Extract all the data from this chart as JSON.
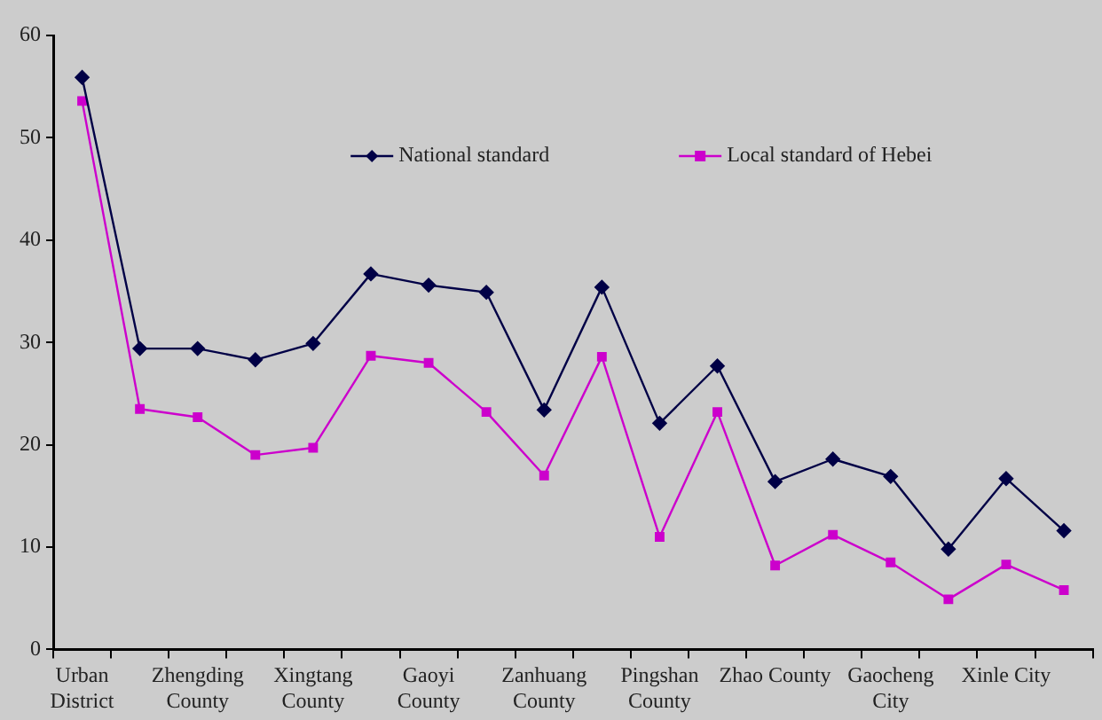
{
  "chart_data": {
    "type": "line",
    "categories": [
      "Urban District",
      null,
      "Zhengding County",
      null,
      "Xingtang County",
      null,
      "Gaoyi County",
      null,
      "Zanhuang County",
      null,
      "Pingshan County",
      null,
      "Zhao County",
      null,
      "Gaocheng City",
      null,
      "Xinle City",
      null
    ],
    "series": [
      {
        "name": "National standard",
        "color": "#000046",
        "marker": "diamond",
        "values": [
          55.9,
          29.4,
          29.4,
          28.3,
          29.9,
          36.7,
          35.6,
          34.9,
          23.4,
          35.4,
          22.1,
          27.7,
          16.4,
          18.6,
          16.9,
          9.8,
          16.7,
          11.6
        ]
      },
      {
        "name": "Local standard of Hebei",
        "color": "#cc00cc",
        "marker": "square",
        "values": [
          53.6,
          23.5,
          22.7,
          19.0,
          19.7,
          28.7,
          28.0,
          23.2,
          17.0,
          28.6,
          11.0,
          23.2,
          8.2,
          11.2,
          8.5,
          4.9,
          8.3,
          5.8
        ]
      }
    ],
    "ylim": [
      0,
      60
    ],
    "yticks": [
      0,
      10,
      20,
      30,
      40,
      50,
      60
    ],
    "grid": false,
    "legend": "top",
    "line_style": "solid"
  }
}
